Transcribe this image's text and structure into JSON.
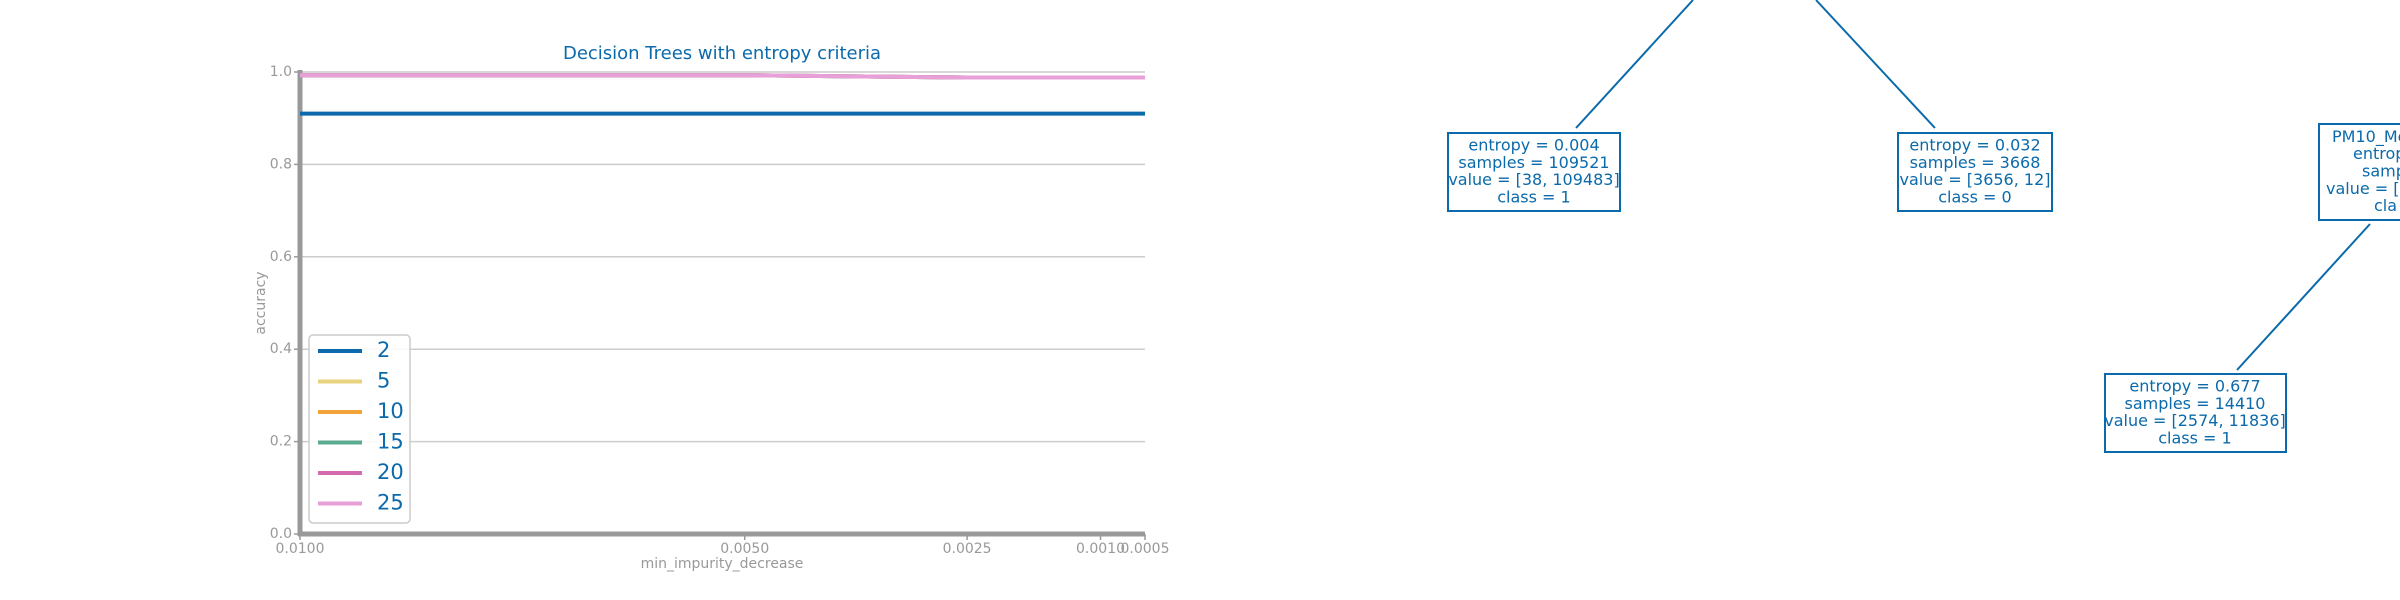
{
  "chart_data": {
    "type": "line",
    "title": "Decision Trees with entropy criteria",
    "x_label": "min_impurity_decrease",
    "y_label": "accuracy",
    "x": [
      0.01,
      0.005,
      0.0025,
      0.001,
      0.0005
    ],
    "series": [
      {
        "name": "2",
        "color": "#0b6aab",
        "values": [
          0.91,
          0.91,
          0.91,
          0.91,
          0.91
        ]
      },
      {
        "name": "5",
        "color": "#e8d37e",
        "values": [
          0.993,
          0.993,
          0.988,
          0.988,
          0.988
        ]
      },
      {
        "name": "10",
        "color": "#f0a43a",
        "values": [
          0.993,
          0.993,
          0.988,
          0.988,
          0.988
        ]
      },
      {
        "name": "15",
        "color": "#5aab8f",
        "values": [
          0.993,
          0.993,
          0.988,
          0.988,
          0.988
        ]
      },
      {
        "name": "20",
        "color": "#d46ab0",
        "values": [
          0.993,
          0.993,
          0.988,
          0.988,
          0.988
        ]
      },
      {
        "name": "25",
        "color": "#e8a0d8",
        "values": [
          0.993,
          0.993,
          0.988,
          0.988,
          0.988
        ]
      }
    ],
    "xlim": [
      0.01,
      0.0005
    ],
    "xticks": [
      {
        "value": 0.01,
        "label": "0.0100"
      },
      {
        "value": 0.005,
        "label": "0.0050"
      },
      0.0025,
      {
        "value": 0.001,
        "label": "0.0010"
      },
      0.0005
    ],
    "ylim": [
      0,
      1
    ],
    "yticks": [
      {
        "value": 0,
        "label": "0.0"
      },
      {
        "value": 0.2,
        "label": "0.2"
      },
      {
        "value": 0.4,
        "label": "0.4"
      },
      {
        "value": 0.6,
        "label": "0.6"
      },
      {
        "value": 0.8,
        "label": "0.8"
      },
      {
        "value": 1,
        "label": "1.0"
      }
    ],
    "grid": true,
    "legend": "lower left"
  },
  "diagram": {
    "nodes": [
      {
        "lines": [
          "entropy = 0.004",
          "samples = 109521",
          "value = [38, 109483]",
          "class = 1"
        ]
      },
      {
        "lines": [
          "entropy = 0.032",
          "samples = 3668",
          "value = [3656, 12]",
          "class = 0"
        ]
      },
      {
        "lines": [
          "PM10_Me",
          "entrop",
          "sampl",
          "value = [2",
          "cla"
        ]
      },
      {
        "lines": [
          "entropy = 0.677",
          "samples = 14410",
          "value = [2574, 11836]",
          "class = 1"
        ]
      }
    ]
  }
}
